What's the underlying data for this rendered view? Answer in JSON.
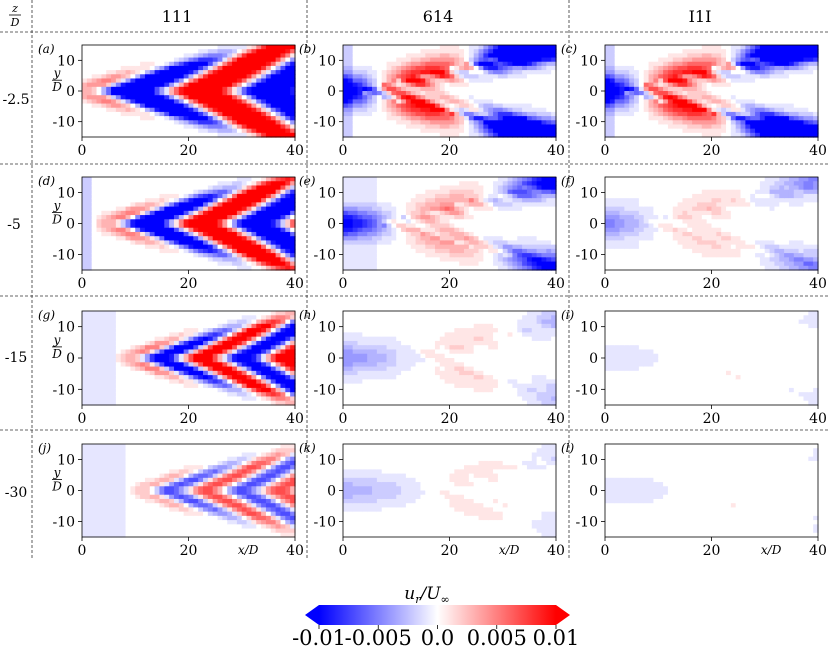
{
  "corner_label": {
    "num": "z",
    "den": "D"
  },
  "columns": [
    "111",
    "614",
    "I1I"
  ],
  "rows": [
    "-2.5",
    "-5",
    "-15",
    "-30"
  ],
  "panel_letters": [
    "(a)",
    "(b)",
    "(c)",
    "(d)",
    "(e)",
    "(f)",
    "(g)",
    "(h)",
    "(i)",
    "(j)",
    "(k)",
    "(l)"
  ],
  "y_axis_label": {
    "num": "y",
    "den": "D"
  },
  "x_axis_label": "x/D",
  "colorbar": {
    "label": "u_r/U_∞",
    "min": -0.01,
    "max": 0.01,
    "ticks": [
      "-0.01",
      "-0.005",
      "0.0",
      "0.005",
      "0.01"
    ],
    "low_color": "#0000ff",
    "mid_color": "#ffffff",
    "high_color": "#ff0000"
  },
  "chart_data": {
    "type": "heatmap",
    "x_ticks": [
      0,
      20,
      40
    ],
    "y_ticks": [
      10,
      0,
      -10
    ],
    "xlim": [
      0,
      40
    ],
    "ylim": [
      -15,
      15
    ]
  }
}
